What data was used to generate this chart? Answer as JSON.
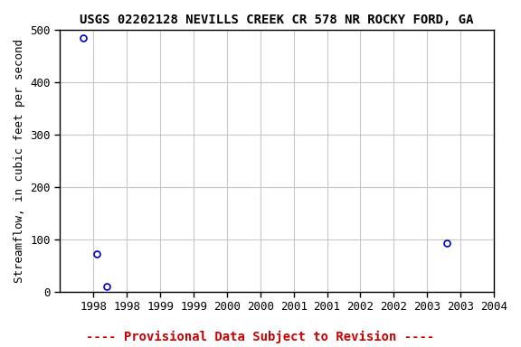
{
  "title": "USGS 02202128 NEVILLS CREEK CR 578 NR ROCKY FORD, GA",
  "xlabel_note": "---- Provisional Data Subject to Revision ----",
  "ylabel": "Streamflow, in cubic feet per second",
  "xlim": [
    1997.5,
    2004.0
  ],
  "ylim": [
    0,
    500
  ],
  "xticks": [
    1998.0,
    1998.5,
    1999.0,
    1999.5,
    2000.0,
    2000.5,
    2001.0,
    2001.5,
    2002.0,
    2002.5,
    2003.0,
    2003.5,
    2004.0
  ],
  "xticklabels": [
    "1998",
    "1998",
    "1999",
    "1999",
    "2000",
    "2000",
    "2001",
    "2001",
    "2002",
    "2002",
    "2003",
    "2003",
    "2004"
  ],
  "yticks": [
    0,
    100,
    200,
    300,
    400,
    500
  ],
  "data_x": [
    1997.85,
    1998.05,
    1998.2,
    2003.3
  ],
  "data_y": [
    484,
    72,
    9,
    93
  ],
  "marker_color": "#0000cc",
  "marker_facecolor": "none",
  "marker_size": 5,
  "marker_style": "o",
  "grid_color": "#c8c8c8",
  "bg_color": "#ffffff",
  "title_fontsize": 10,
  "axis_fontsize": 9,
  "tick_fontsize": 9,
  "note_color": "#cc0000",
  "note_fontsize": 10
}
